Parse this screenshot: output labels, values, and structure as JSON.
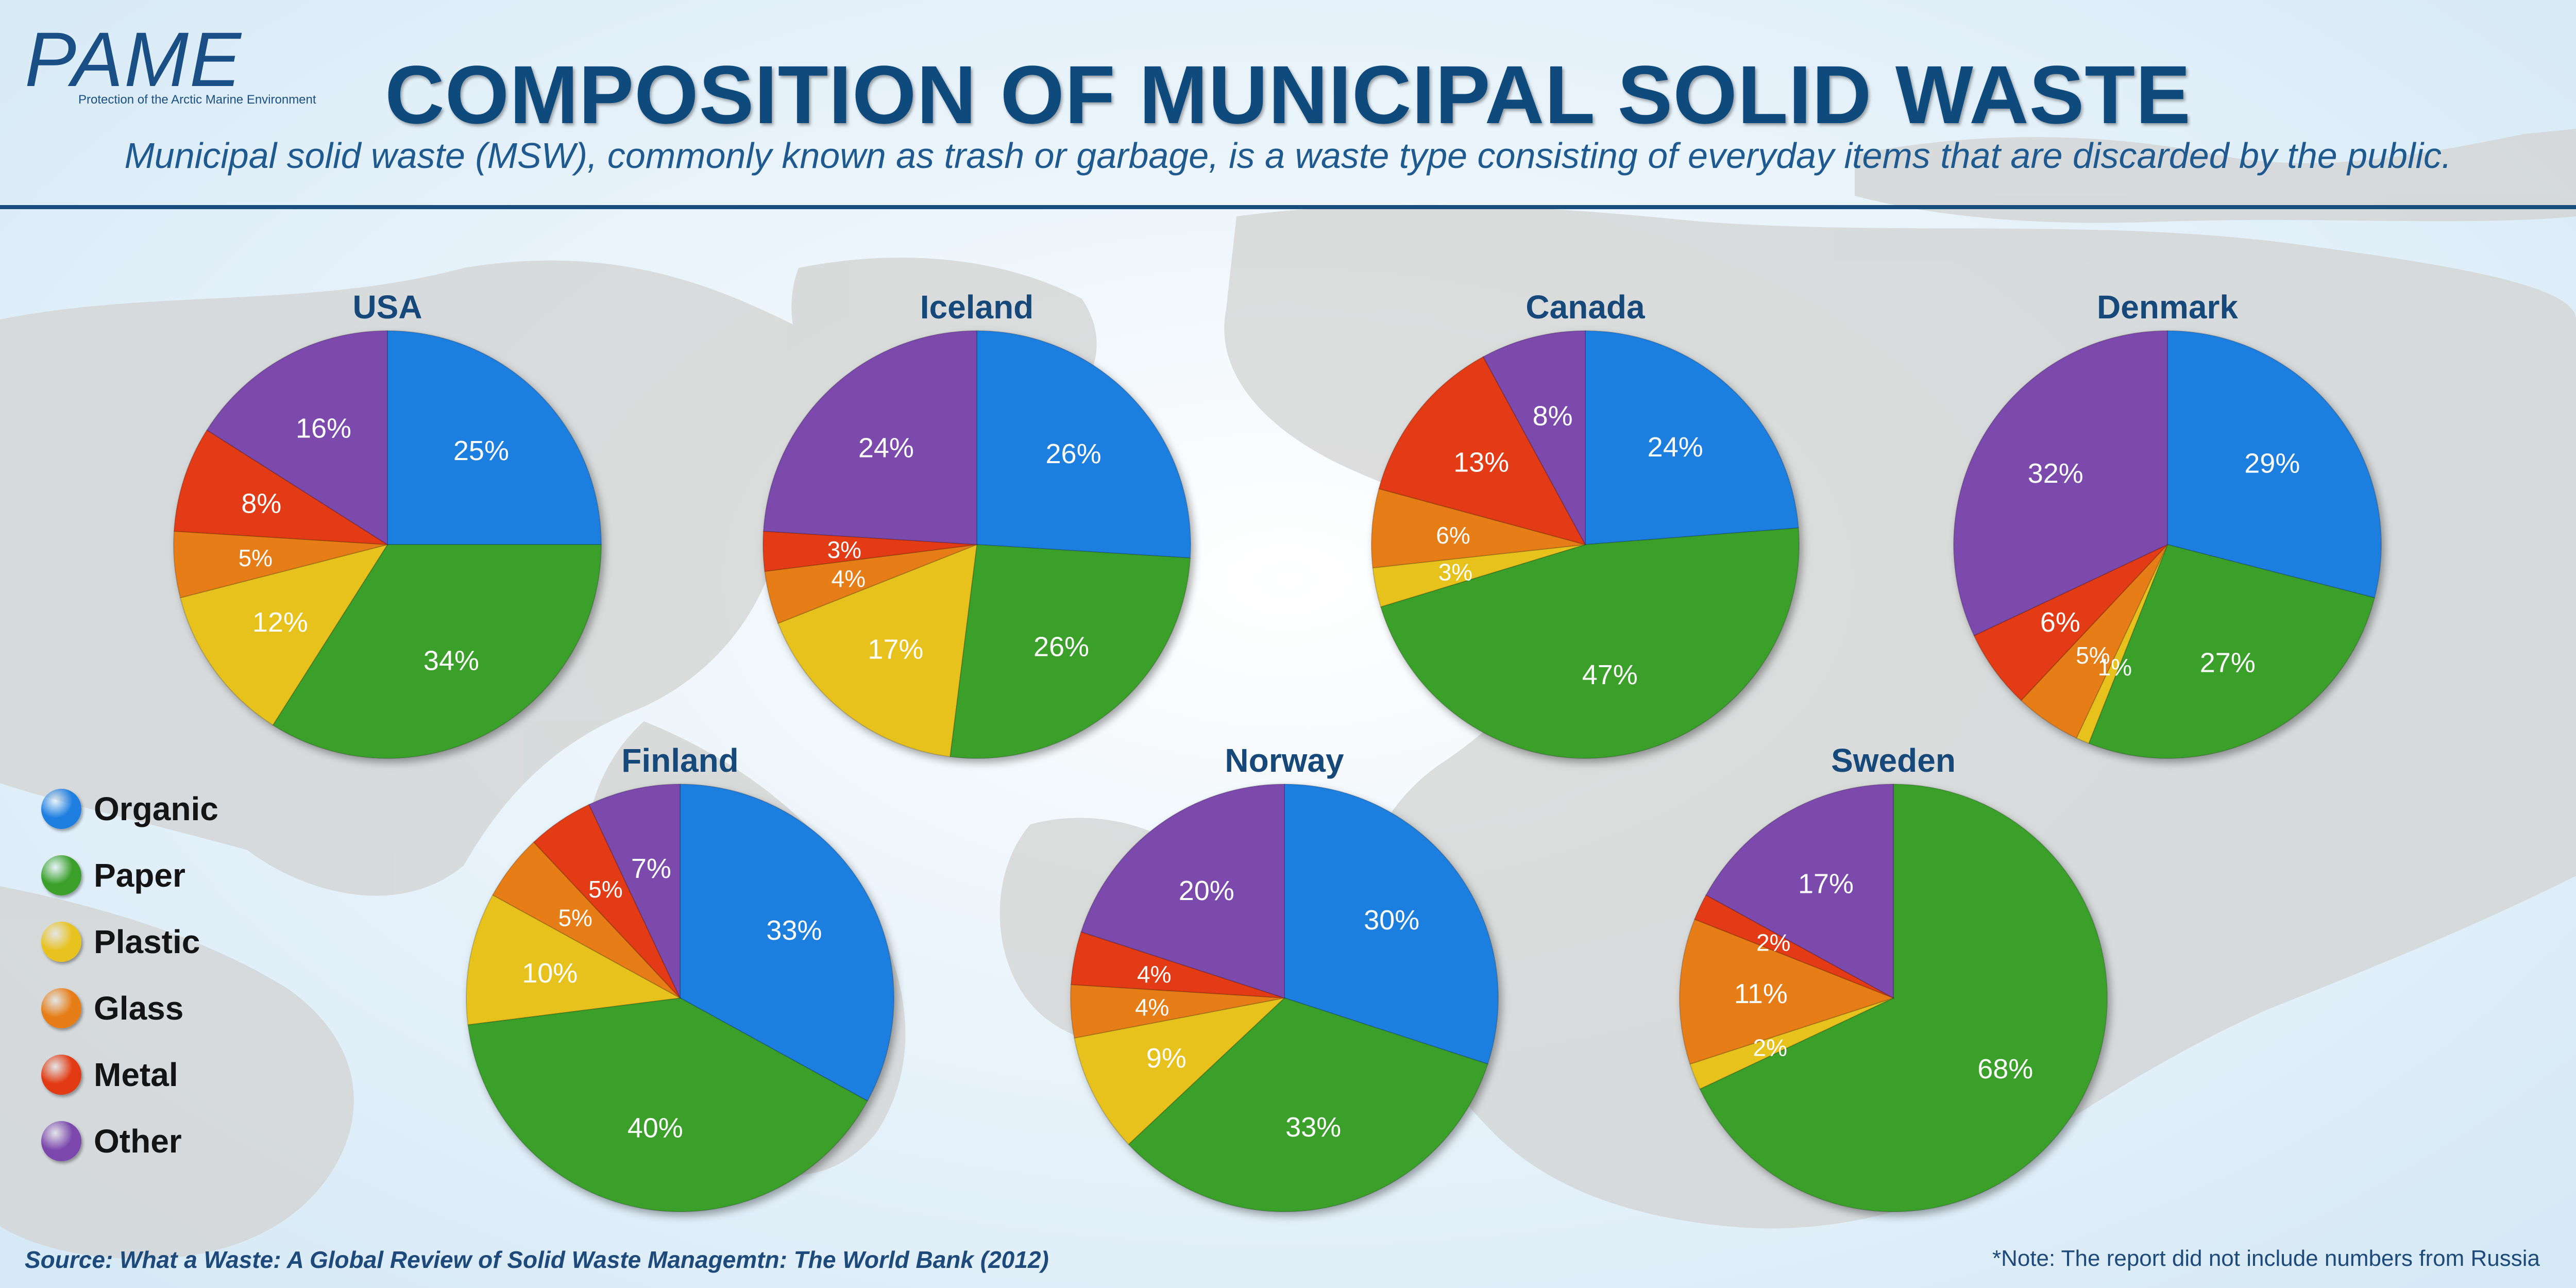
{
  "header": {
    "logo": "PAME",
    "logo_subtitle": "Protection of the Arctic Marine Environment",
    "title": "COMPOSITION OF MUNICIPAL SOLID WASTE",
    "subtitle": "Municipal solid waste (MSW), commonly known as trash or garbage, is a waste type consisting of everyday items that are discarded by the public."
  },
  "legend": {
    "items": [
      {
        "label": "Organic",
        "color": "#1f7fe0"
      },
      {
        "label": "Paper",
        "color": "#3aa02a"
      },
      {
        "label": "Plastic",
        "color": "#e8c21f"
      },
      {
        "label": "Glass",
        "color": "#e67d16"
      },
      {
        "label": "Metal",
        "color": "#e23a12"
      },
      {
        "label": "Other",
        "color": "#7c48ad"
      }
    ]
  },
  "footer": {
    "source": "Source: What a Waste: A Global Review of Solid Waste Managemtn: The World Bank (2012)",
    "note": "*Note: The report did not include numbers from Russia"
  },
  "chart_data": [
    {
      "type": "pie",
      "title": "USA",
      "categories": [
        "Organic",
        "Paper",
        "Plastic",
        "Glass",
        "Metal",
        "Other"
      ],
      "values": [
        25,
        34,
        12,
        5,
        8,
        16
      ],
      "labels": [
        "25%",
        "34%",
        "12%",
        "5%",
        "8%",
        "16%"
      ]
    },
    {
      "type": "pie",
      "title": "Iceland",
      "categories": [
        "Organic",
        "Paper",
        "Plastic",
        "Glass",
        "Metal",
        "Other"
      ],
      "values": [
        26,
        26,
        17,
        4,
        3,
        24
      ],
      "labels": [
        "26%",
        "26%",
        "17%",
        "4%",
        "3%",
        "24%"
      ]
    },
    {
      "type": "pie",
      "title": "Canada",
      "categories": [
        "Organic",
        "Paper",
        "Plastic",
        "Glass",
        "Metal",
        "Other"
      ],
      "values": [
        24,
        47,
        3,
        6,
        13,
        8
      ],
      "labels": [
        "24%",
        "47%",
        "3%",
        "6%",
        "13%",
        "8%"
      ]
    },
    {
      "type": "pie",
      "title": "Denmark",
      "categories": [
        "Organic",
        "Paper",
        "Plastic",
        "Glass",
        "Metal",
        "Other"
      ],
      "values": [
        29,
        27,
        1,
        5,
        6,
        32
      ],
      "labels": [
        "29%",
        "27%",
        "1%",
        "5%",
        "6%",
        "32%"
      ]
    },
    {
      "type": "pie",
      "title": "Finland",
      "categories": [
        "Organic",
        "Paper",
        "Plastic",
        "Glass",
        "Metal",
        "Other"
      ],
      "values": [
        33,
        40,
        10,
        5,
        5,
        7
      ],
      "labels": [
        "33%",
        "40%",
        "10%",
        "5%",
        "5%",
        "7%"
      ]
    },
    {
      "type": "pie",
      "title": "Norway",
      "categories": [
        "Organic",
        "Paper",
        "Plastic",
        "Glass",
        "Metal",
        "Other"
      ],
      "values": [
        30,
        33,
        9,
        4,
        4,
        20
      ],
      "labels": [
        "30%",
        "33%",
        "9%",
        "4%",
        "4%",
        "20%"
      ]
    },
    {
      "type": "pie",
      "title": "Sweden",
      "categories": [
        "Organic",
        "Paper",
        "Plastic",
        "Glass",
        "Metal",
        "Other"
      ],
      "values": [
        0,
        68,
        2,
        11,
        2,
        17
      ],
      "labels": [
        "",
        "68%",
        "2%",
        "11%",
        "2%",
        "17%"
      ]
    }
  ]
}
